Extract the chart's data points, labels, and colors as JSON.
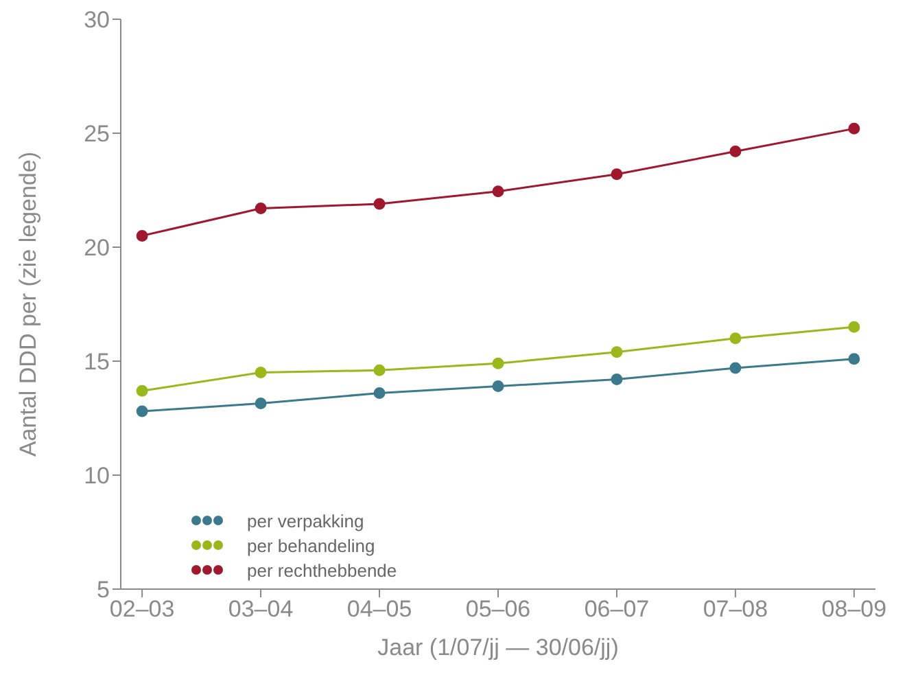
{
  "chart_data": {
    "type": "line",
    "xlabel": "Jaar (1/07/jj  —  30/06/jj)",
    "ylabel": "Aantal DDD per (zie legende)",
    "categories": [
      "02–03",
      "03–04",
      "04–05",
      "05–06",
      "06–07",
      "07–08",
      "08–09"
    ],
    "series": [
      {
        "name": "per verpakking",
        "color": "#3b7a8c",
        "values": [
          12.8,
          13.15,
          13.6,
          13.9,
          14.2,
          14.7,
          15.1
        ]
      },
      {
        "name": "per behandeling",
        "color": "#9ab81c",
        "values": [
          13.7,
          14.5,
          14.6,
          14.9,
          15.4,
          16.0,
          16.5
        ]
      },
      {
        "name": "per rechthebbende",
        "color": "#a0182e",
        "values": [
          20.5,
          21.7,
          21.9,
          22.45,
          23.2,
          24.2,
          25.2
        ]
      }
    ],
    "ylim": [
      5,
      30
    ],
    "yticks": [
      5,
      10,
      15,
      20,
      25,
      30
    ],
    "grid": false,
    "legend": "bottom left",
    "marker": "circle",
    "line_style": "solid"
  }
}
